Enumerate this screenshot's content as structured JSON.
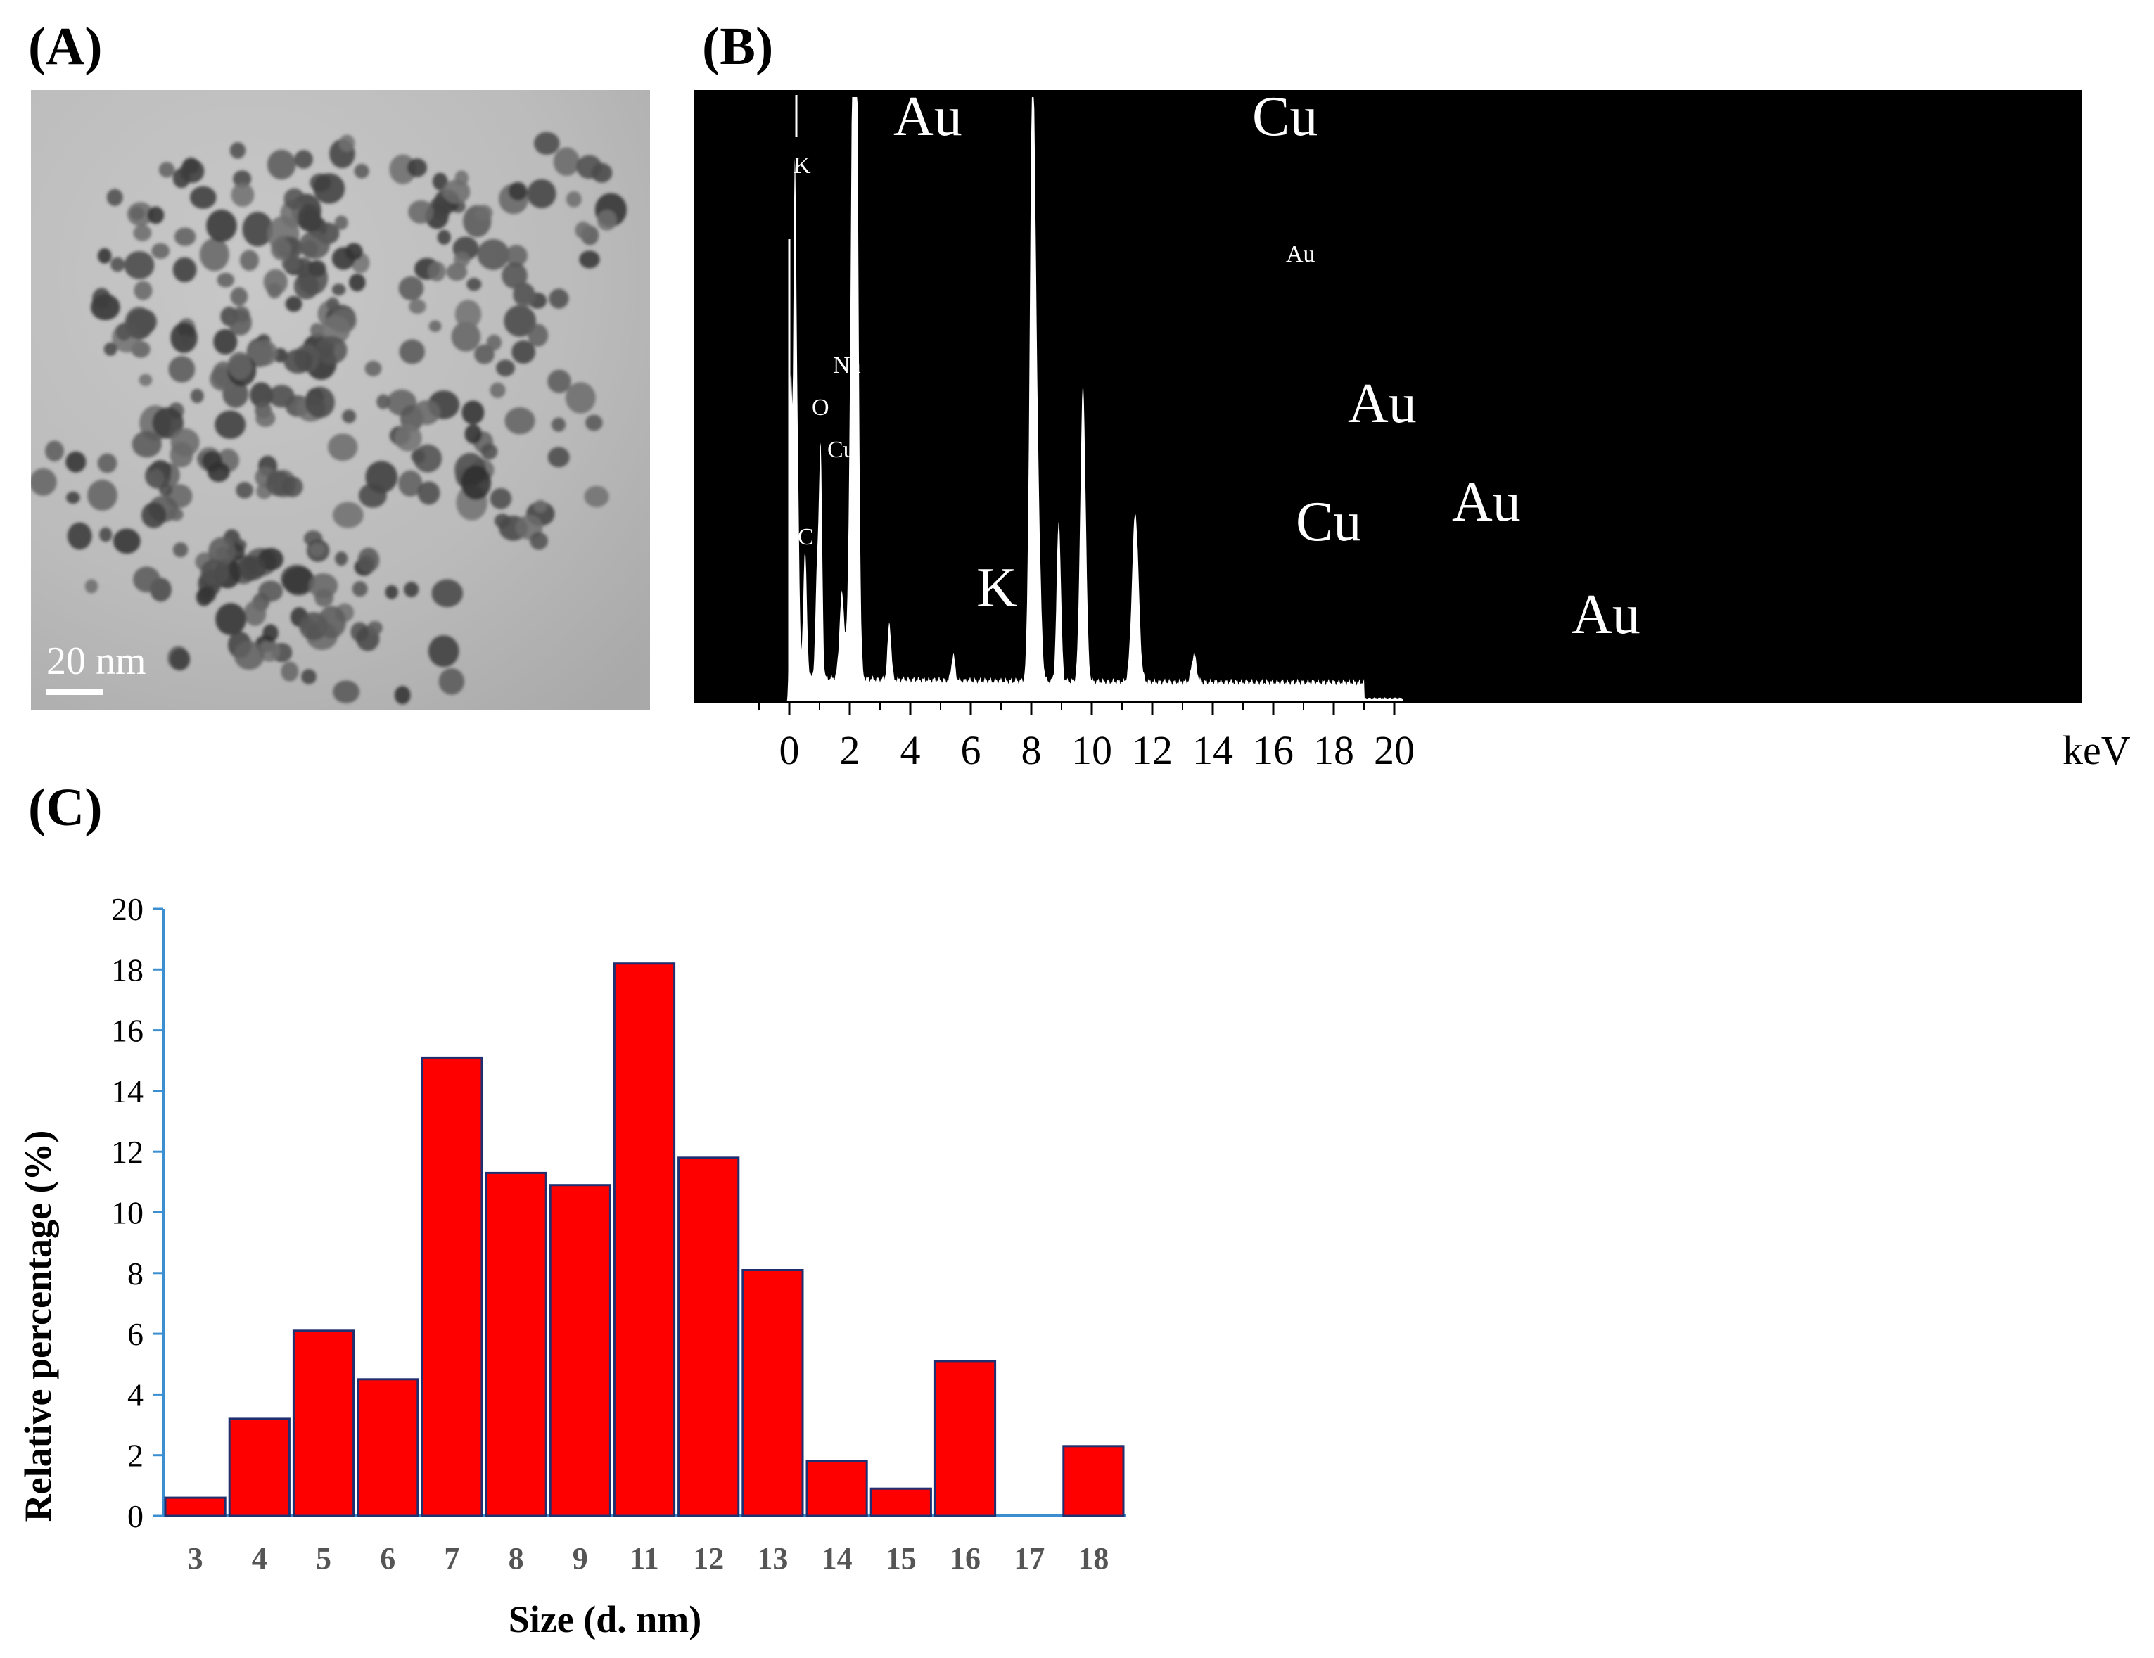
{
  "panels": {
    "a_label": "(A)",
    "b_label": "(B)",
    "c_label": "(C)"
  },
  "tem": {
    "scale_bar_label": "20 nm"
  },
  "eds": {
    "x_unit": "keV",
    "x_ticks": [
      "0",
      "2",
      "4",
      "6",
      "8",
      "10",
      "12",
      "14",
      "16",
      "18",
      "20"
    ],
    "peak_labels_large": [
      "Au",
      "Cu",
      "Au",
      "Au",
      "Cu",
      "K",
      "Au"
    ],
    "peak_labels_small": [
      "K",
      "Na",
      "O",
      "Cu",
      "C",
      "Au"
    ],
    "colors": {
      "background": "#000000",
      "spectrum": "#ffffff"
    }
  },
  "chart_data": {
    "type": "bar",
    "categories": [
      "3",
      "4",
      "5",
      "6",
      "7",
      "8",
      "9",
      "11",
      "12",
      "13",
      "14",
      "15",
      "16",
      "17",
      "18"
    ],
    "values": [
      0.6,
      3.2,
      6.1,
      4.5,
      15.1,
      11.3,
      10.9,
      18.2,
      11.8,
      8.1,
      1.8,
      0.9,
      5.1,
      0,
      2.3
    ],
    "xlabel": "Size (d. nm)",
    "ylabel": "Relative percentage (%)",
    "ylim": [
      0,
      20
    ],
    "yticks": [
      "0",
      "2",
      "4",
      "6",
      "8",
      "10",
      "12",
      "14",
      "16",
      "18",
      "20"
    ],
    "colors": {
      "bar_fill": "#ff0000",
      "bar_edge": "#1f2f6f",
      "axis": "#3b8fd0"
    }
  }
}
